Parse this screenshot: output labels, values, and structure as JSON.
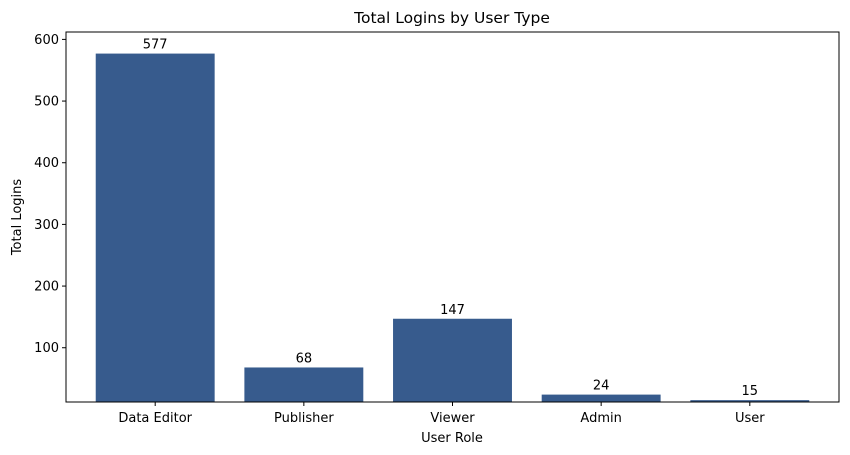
{
  "chart_data": {
    "type": "bar",
    "title": "Total Logins by User Type",
    "xlabel": "User Role",
    "ylabel": "Total Logins",
    "categories": [
      "Data Editor",
      "Publisher",
      "Viewer",
      "Admin",
      "User"
    ],
    "values": [
      577,
      68,
      147,
      24,
      15
    ],
    "data_labels": [
      "577",
      "68",
      "147",
      "24",
      "15"
    ],
    "yticks": [
      100,
      200,
      300,
      400,
      500,
      600
    ],
    "ylim": [
      12,
      612
    ],
    "bar_color": "#375b8d",
    "grid": false,
    "legend": "none"
  }
}
